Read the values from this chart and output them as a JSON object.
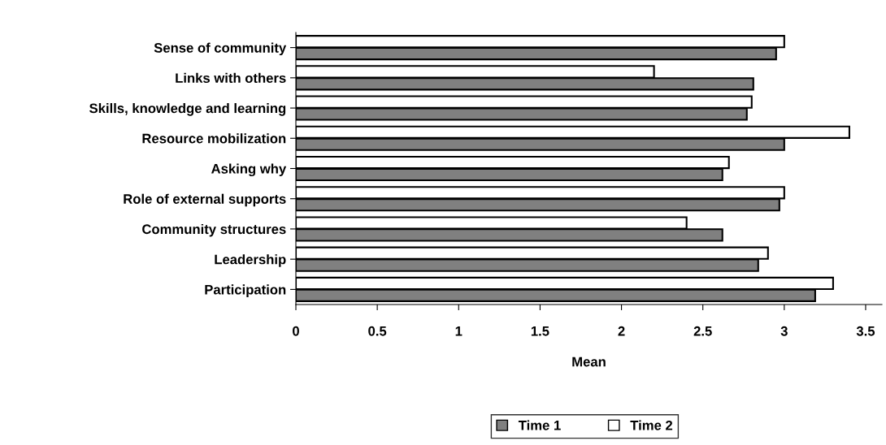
{
  "chart_data": {
    "type": "bar",
    "orientation": "horizontal",
    "xlabel": "Mean",
    "categories": [
      "Sense of community",
      "Links with others",
      "Skills, knowledge and learning",
      "Resource mobilization",
      "Asking why",
      "Role of external supports",
      "Community structures",
      "Leadership",
      "Participation"
    ],
    "series": [
      {
        "name": "Time 1",
        "color": "#808080",
        "values": [
          2.95,
          2.81,
          2.77,
          3.0,
          2.62,
          2.97,
          2.62,
          2.84,
          3.19
        ]
      },
      {
        "name": "Time 2",
        "color": "#ffffff",
        "values": [
          3.0,
          2.2,
          2.8,
          3.4,
          2.66,
          3.0,
          2.4,
          2.9,
          3.3
        ]
      }
    ],
    "xlim": [
      0,
      3.6
    ],
    "xticks": [
      0,
      0.5,
      1,
      1.5,
      2,
      2.5,
      3,
      3.5
    ],
    "grid": false,
    "legend": "bottom"
  }
}
